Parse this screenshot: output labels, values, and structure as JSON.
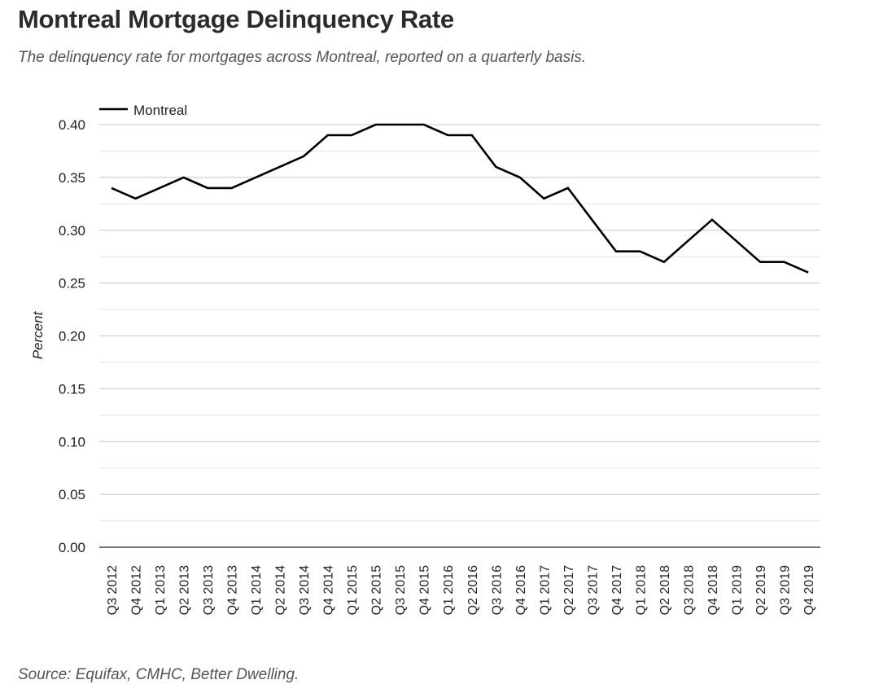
{
  "title": "Montreal Mortgage Delinquency Rate",
  "subtitle": "The delinquency rate for mortgages across Montreal, reported on a quarterly basis.",
  "source": "Source: Equifax, CMHC, Better Dwelling.",
  "chart_data": {
    "type": "line",
    "ylabel": "Percent",
    "xlabel": "",
    "ylim": [
      0,
      0.4
    ],
    "y_ticks": [
      "0.00",
      "0.05",
      "0.10",
      "0.15",
      "0.20",
      "0.25",
      "0.30",
      "0.35",
      "0.40"
    ],
    "grid": true,
    "legend_position": "top-left",
    "categories": [
      "Q3 2012",
      "Q4 2012",
      "Q1 2013",
      "Q2 2013",
      "Q3 2013",
      "Q4 2013",
      "Q1 2014",
      "Q2 2014",
      "Q3 2014",
      "Q4 2014",
      "Q1 2015",
      "Q2 2015",
      "Q3 2015",
      "Q4 2015",
      "Q1 2016",
      "Q2 2016",
      "Q3 2016",
      "Q4 2016",
      "Q1 2017",
      "Q2 2017",
      "Q3 2017",
      "Q4 2017",
      "Q1 2018",
      "Q2 2018",
      "Q3 2018",
      "Q4 2018",
      "Q1 2019",
      "Q2 2019",
      "Q3 2019",
      "Q4 2019"
    ],
    "series": [
      {
        "name": "Montreal",
        "color": "#000000",
        "values": [
          0.34,
          0.33,
          0.34,
          0.35,
          0.34,
          0.34,
          0.35,
          0.36,
          0.37,
          0.39,
          0.39,
          0.4,
          0.4,
          0.4,
          0.39,
          0.39,
          0.36,
          0.35,
          0.33,
          0.34,
          0.31,
          0.28,
          0.28,
          0.27,
          0.29,
          0.31,
          0.29,
          0.27,
          0.27,
          0.26
        ]
      }
    ]
  }
}
